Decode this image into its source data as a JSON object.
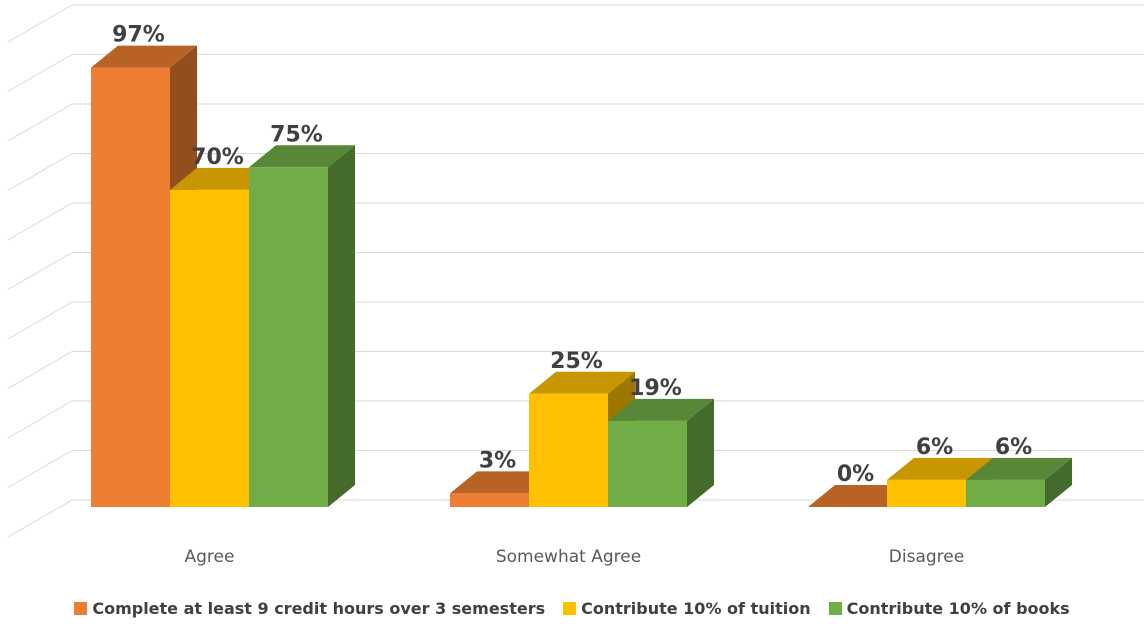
{
  "chart_data": {
    "type": "bar",
    "style": "3d-clustered-column",
    "categories": [
      "Agree",
      "Somewhat Agree",
      "Disagree"
    ],
    "series": [
      {
        "name": "Complete at least 9 credit hours over 3 semesters",
        "values": [
          97,
          3,
          0
        ],
        "color": "#ED7D31"
      },
      {
        "name": "Contribute 10% of tuition",
        "values": [
          70,
          25,
          6
        ],
        "color": "#FFC000"
      },
      {
        "name": "Contribute 10% of books",
        "values": [
          75,
          19,
          6
        ],
        "color": "#70AD47"
      }
    ],
    "data_labels": [
      [
        "97%",
        "3%",
        "0%"
      ],
      [
        "70%",
        "25%",
        "6%"
      ],
      [
        "75%",
        "19%",
        "6%"
      ]
    ],
    "value_unit": "%",
    "ylim": [
      0,
      100
    ],
    "grid": true,
    "legend_position": "bottom"
  }
}
